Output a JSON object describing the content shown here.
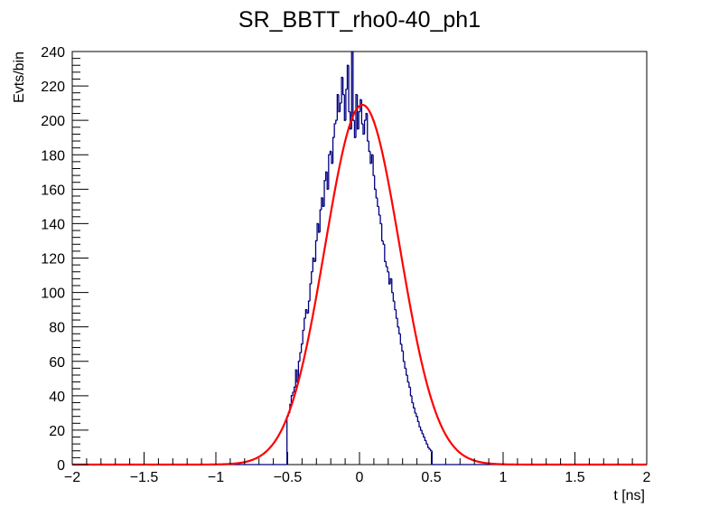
{
  "chart_data": {
    "type": "histogram",
    "title": "SR_BBTT_rho0-40_ph1",
    "xlabel": "t [ns]",
    "ylabel": "Evts/bin",
    "xlim": [
      -2,
      2
    ],
    "ylim": [
      0,
      240
    ],
    "xticks": [
      -2,
      -1.5,
      -1,
      -0.5,
      0,
      0.5,
      1,
      1.5,
      2
    ],
    "xtick_labels": [
      "−2",
      "−1.5",
      "−1",
      "−0.5",
      "0",
      "0.5",
      "1",
      "1.5",
      "2"
    ],
    "yticks": [
      0,
      20,
      40,
      60,
      80,
      100,
      120,
      140,
      160,
      180,
      200,
      220,
      240
    ],
    "ytick_labels": [
      "0",
      "20",
      "40",
      "60",
      "80",
      "100",
      "120",
      "140",
      "160",
      "180",
      "200",
      "220",
      "240"
    ],
    "grid": false,
    "legend": "none",
    "colors": {
      "histogram": "#00007f",
      "fit": "#ff0000"
    },
    "histogram": {
      "bin_width": 0.01,
      "bins_x": [
        -0.5,
        -0.49,
        -0.48,
        -0.47,
        -0.46,
        -0.45,
        -0.44,
        -0.43,
        -0.42,
        -0.41,
        -0.4,
        -0.39,
        -0.38,
        -0.37,
        -0.36,
        -0.35,
        -0.34,
        -0.33,
        -0.32,
        -0.31,
        -0.3,
        -0.29,
        -0.28,
        -0.27,
        -0.26,
        -0.25,
        -0.24,
        -0.23,
        -0.22,
        -0.21,
        -0.2,
        -0.19,
        -0.18,
        -0.17,
        -0.16,
        -0.15,
        -0.14,
        -0.13,
        -0.12,
        -0.11,
        -0.1,
        -0.09,
        -0.08,
        -0.07,
        -0.06,
        -0.05,
        -0.04,
        -0.03,
        -0.02,
        -0.01,
        0,
        0.01,
        0.02,
        0.03,
        0.04,
        0.05,
        0.06,
        0.07,
        0.08,
        0.09,
        0.1,
        0.11,
        0.12,
        0.13,
        0.14,
        0.15,
        0.16,
        0.17,
        0.18,
        0.19,
        0.2,
        0.21,
        0.22,
        0.23,
        0.24,
        0.25,
        0.26,
        0.27,
        0.28,
        0.29,
        0.3,
        0.31,
        0.32,
        0.33,
        0.34,
        0.35,
        0.36,
        0.37,
        0.38,
        0.39,
        0.4,
        0.41,
        0.42,
        0.43,
        0.44,
        0.45,
        0.46,
        0.47,
        0.48,
        0.49,
        0.5
      ],
      "counts": [
        28,
        30,
        35,
        40,
        42,
        45,
        55,
        48,
        60,
        65,
        70,
        78,
        85,
        90,
        88,
        95,
        105,
        112,
        120,
        118,
        130,
        140,
        135,
        148,
        155,
        150,
        165,
        170,
        160,
        180,
        182,
        175,
        190,
        198,
        200,
        215,
        205,
        210,
        225,
        215,
        200,
        218,
        232,
        205,
        195,
        240,
        200,
        190,
        215,
        195,
        205,
        212,
        198,
        192,
        200,
        204,
        188,
        182,
        175,
        180,
        168,
        160,
        155,
        150,
        145,
        140,
        130,
        128,
        118,
        115,
        112,
        105,
        108,
        100,
        95,
        90,
        85,
        80,
        76,
        70,
        66,
        60,
        56,
        52,
        48,
        45,
        40,
        36,
        33,
        30,
        28,
        25,
        22,
        20,
        18,
        16,
        14,
        12,
        10,
        9,
        8
      ]
    },
    "fit": {
      "type": "gaussian",
      "amplitude": 209,
      "mean": 0.02,
      "sigma": 0.26
    }
  }
}
